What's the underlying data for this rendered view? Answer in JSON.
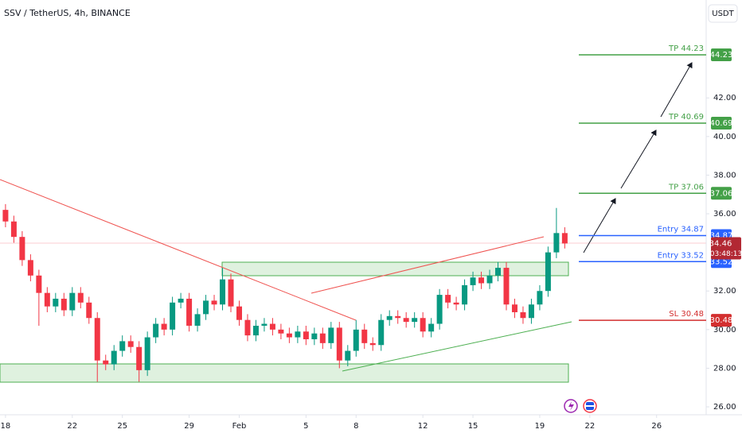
{
  "chart_data": {
    "type": "candlestick",
    "title": "SSV / TetherUS, 4h, BINANCE",
    "currency_button": "USDT",
    "countdown": "03:48:13",
    "xlim": [
      -0.33,
      41.97
    ],
    "ylim": [
      25.59,
      47.07
    ],
    "xticks": [
      {
        "value": 0,
        "label": "18"
      },
      {
        "value": 4,
        "label": "22"
      },
      {
        "value": 7,
        "label": "25"
      },
      {
        "value": 11,
        "label": "29"
      },
      {
        "value": 14,
        "label": "Feb"
      },
      {
        "value": 18,
        "label": "5"
      },
      {
        "value": 21,
        "label": "8"
      },
      {
        "value": 25,
        "label": "12"
      },
      {
        "value": 28,
        "label": "15"
      },
      {
        "value": 32,
        "label": "19"
      },
      {
        "value": 35,
        "label": "22"
      },
      {
        "value": 39,
        "label": "26"
      }
    ],
    "yticks": [
      {
        "value": 26,
        "label": "26.00"
      },
      {
        "value": 28,
        "label": "28.00"
      },
      {
        "value": 30,
        "label": "30.00"
      },
      {
        "value": 32,
        "label": "32.00"
      },
      {
        "value": 36,
        "label": "36.00"
      },
      {
        "value": 38,
        "label": "38.00"
      },
      {
        "value": 40,
        "label": "40.00"
      },
      {
        "value": 42,
        "label": "42.00"
      }
    ],
    "up_color": "#089981",
    "down_color": "#f23645",
    "x": [
      0,
      0.5,
      1,
      1.5,
      2,
      2.5,
      3,
      3.5,
      4,
      4.5,
      5,
      5.5,
      6,
      6.5,
      7,
      7.5,
      8,
      8.5,
      9,
      9.5,
      10,
      10.5,
      11,
      11.5,
      12,
      12.5,
      13,
      13.5,
      14,
      14.5,
      15,
      15.5,
      16,
      16.5,
      17,
      17.5,
      18,
      18.5,
      19,
      19.5,
      20,
      20.5,
      21,
      21.5,
      22,
      22.5,
      23,
      23.5,
      24,
      24.5,
      25,
      25.5,
      26,
      26.5,
      27,
      27.5,
      28,
      28.5,
      29,
      29.5,
      30,
      30.5,
      31,
      31.5,
      32,
      32.5,
      33,
      33.5
    ],
    "open": [
      36.2,
      35.6,
      34.8,
      33.6,
      32.8,
      31.9,
      31.2,
      31.6,
      31.0,
      31.9,
      31.4,
      30.6,
      28.4,
      28.2,
      28.9,
      29.4,
      29.1,
      27.9,
      29.6,
      30.3,
      30.0,
      31.4,
      31.6,
      30.2,
      30.8,
      31.5,
      31.3,
      32.6,
      31.2,
      30.5,
      29.7,
      30.2,
      30.3,
      30.0,
      29.8,
      29.6,
      29.9,
      29.5,
      29.8,
      29.3,
      30.1,
      28.4,
      28.9,
      30.0,
      29.3,
      29.2,
      30.5,
      30.7,
      30.6,
      30.4,
      30.6,
      29.9,
      30.3,
      31.8,
      31.4,
      31.3,
      32.3,
      32.7,
      32.4,
      32.8,
      33.2,
      31.3,
      30.9,
      30.6,
      31.3,
      32.0,
      34.0,
      35.0
    ],
    "high": [
      36.5,
      35.9,
      35.1,
      33.9,
      33.1,
      32.2,
      31.9,
      31.9,
      32.2,
      32.2,
      31.7,
      30.9,
      28.7,
      29.2,
      29.7,
      29.7,
      29.4,
      29.9,
      30.6,
      30.6,
      31.7,
      31.9,
      31.9,
      31.1,
      31.8,
      31.8,
      33.2,
      32.9,
      31.5,
      30.8,
      30.5,
      30.6,
      30.6,
      30.3,
      30.1,
      30.2,
      30.2,
      30.1,
      30.1,
      30.4,
      30.4,
      29.2,
      30.5,
      30.3,
      29.6,
      30.8,
      31.0,
      31.0,
      30.9,
      30.9,
      30.9,
      30.6,
      32.1,
      32.1,
      31.7,
      32.6,
      33.0,
      33.0,
      33.1,
      33.5,
      33.5,
      31.6,
      31.2,
      31.6,
      32.3,
      34.3,
      36.3,
      35.3
    ],
    "low": [
      35.3,
      34.5,
      33.3,
      32.5,
      30.2,
      30.9,
      30.9,
      30.7,
      30.7,
      31.1,
      30.3,
      27.3,
      27.9,
      27.9,
      28.6,
      28.8,
      27.3,
      27.6,
      29.3,
      29.7,
      29.7,
      31.1,
      29.9,
      29.9,
      30.5,
      31.0,
      31.0,
      30.9,
      30.2,
      29.4,
      29.4,
      29.9,
      29.7,
      29.5,
      29.3,
      29.3,
      29.2,
      29.2,
      29.0,
      29.0,
      28.0,
      28.1,
      28.6,
      29.0,
      28.9,
      28.9,
      30.2,
      30.3,
      30.1,
      30.1,
      29.6,
      29.6,
      30.0,
      31.1,
      31.0,
      31.0,
      32.0,
      32.1,
      32.1,
      32.5,
      31.0,
      30.6,
      30.3,
      30.3,
      31.0,
      31.7,
      33.7,
      34.2
    ],
    "close": [
      35.6,
      34.8,
      33.6,
      32.8,
      31.9,
      31.2,
      31.6,
      31.0,
      31.9,
      31.4,
      30.6,
      28.4,
      28.2,
      28.9,
      29.4,
      29.1,
      27.9,
      29.6,
      30.3,
      30.0,
      31.4,
      31.6,
      30.2,
      30.8,
      31.5,
      31.3,
      32.6,
      31.2,
      30.5,
      29.7,
      30.2,
      30.3,
      30.0,
      29.8,
      29.6,
      29.9,
      29.5,
      29.8,
      29.3,
      30.1,
      28.4,
      28.9,
      30.0,
      29.3,
      29.2,
      30.5,
      30.7,
      30.6,
      30.4,
      30.6,
      29.9,
      30.3,
      31.8,
      31.4,
      31.3,
      32.3,
      32.7,
      32.4,
      32.8,
      33.2,
      31.3,
      30.9,
      30.6,
      31.3,
      32.0,
      34.0,
      35.0,
      34.46
    ],
    "levels": [
      {
        "label": "TP 44.23",
        "value": 44.23,
        "color": "#43a047"
      },
      {
        "label": "TP 40.69",
        "value": 40.69,
        "color": "#43a047"
      },
      {
        "label": "TP 37.06",
        "value": 37.06,
        "color": "#43a047"
      },
      {
        "label": "Entry 34.87",
        "value": 34.87,
        "color": "#2962ff"
      },
      {
        "label": "Entry 33.52",
        "value": 33.52,
        "color": "#2962ff"
      },
      {
        "label": "SL 30.48",
        "value": 30.48,
        "color": "#d32f2f"
      }
    ]
  }
}
